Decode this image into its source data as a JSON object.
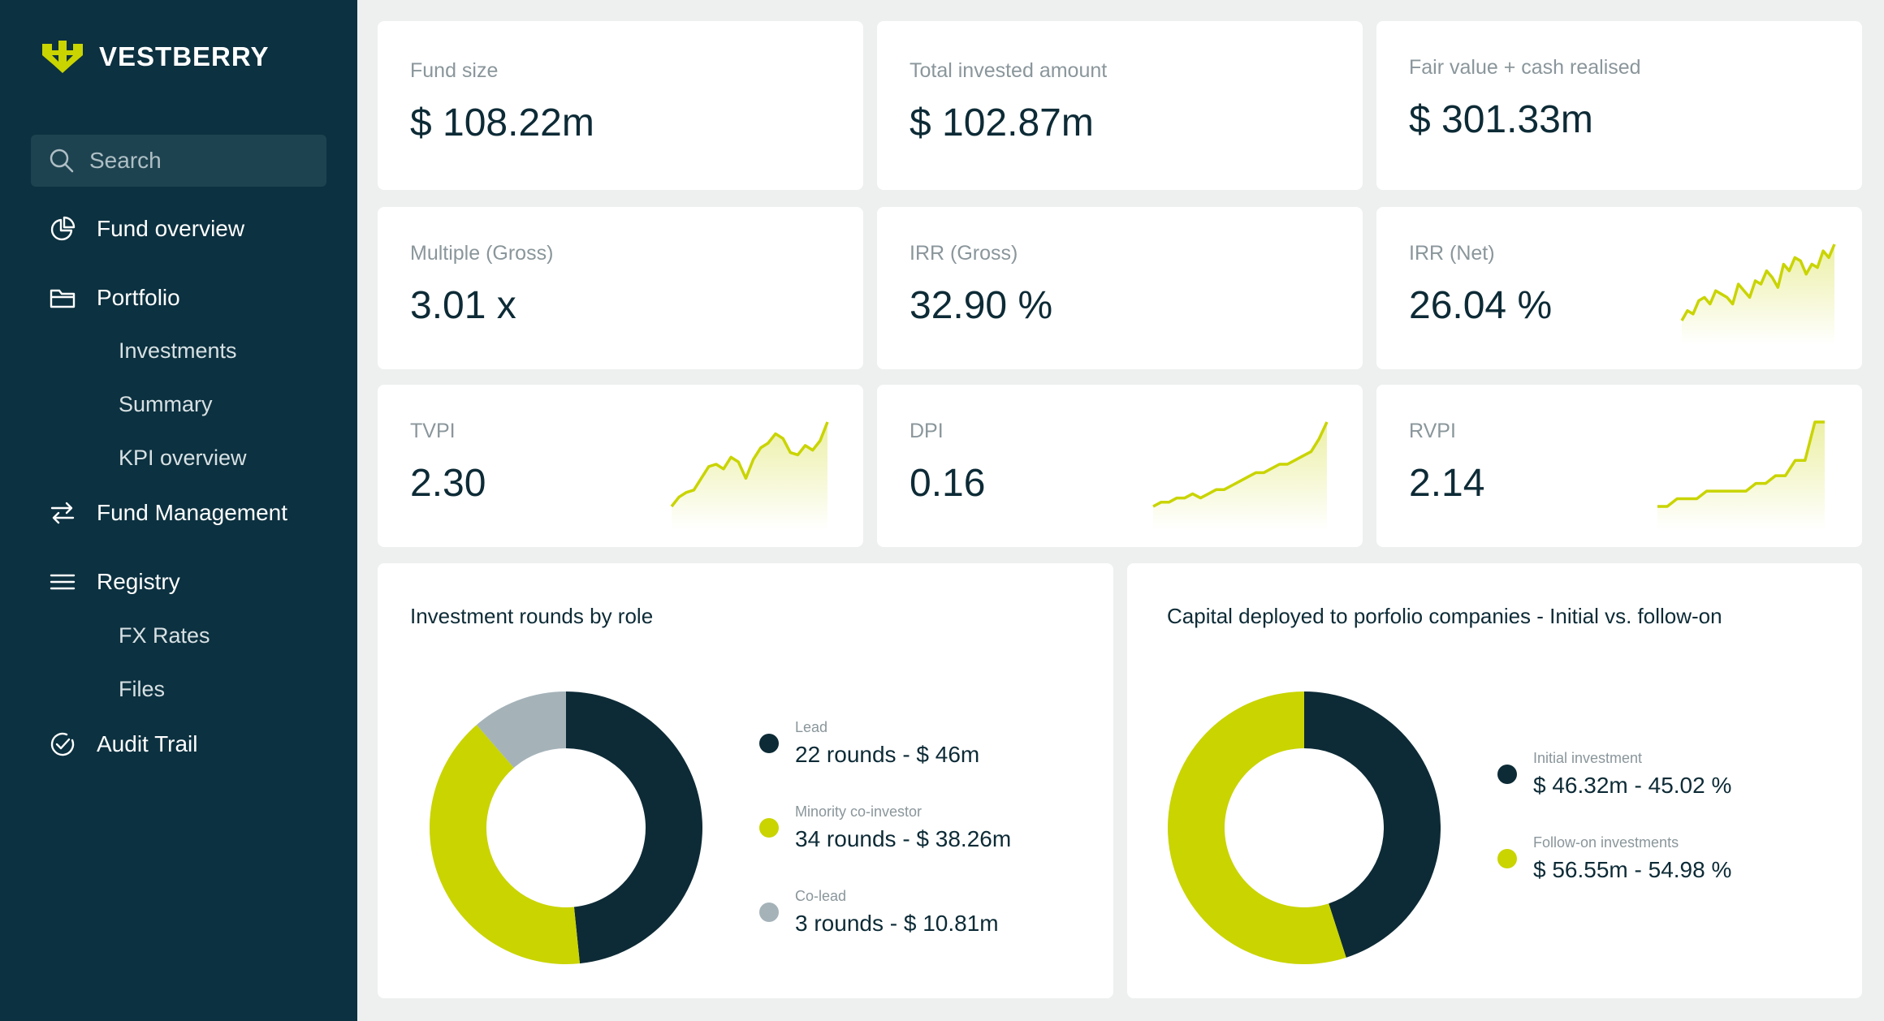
{
  "brand": {
    "name": "VESTBERRY",
    "accent": "#c9d400",
    "sidebar_bg": "#0c3140"
  },
  "search": {
    "placeholder": "Search",
    "icon": "search-icon"
  },
  "nav": {
    "fund_overview": "Fund overview",
    "portfolio": "Portfolio",
    "investments": "Investments",
    "summary": "Summary",
    "kpi_overview": "KPI overview",
    "fund_management": "Fund Management",
    "registry": "Registry",
    "fx_rates": "FX Rates",
    "files": "Files",
    "audit_trail": "Audit Trail"
  },
  "kpis": {
    "fund_size": {
      "label": "Fund size",
      "value": "$ 108.22m"
    },
    "total_invested": {
      "label": "Total invested amount",
      "value": "$ 102.87m"
    },
    "fair_value": {
      "label": "Fair value + cash realised",
      "value": "$ 301.33m"
    },
    "multiple": {
      "label": "Multiple (Gross)",
      "value": "3.01 x"
    },
    "irr_gross": {
      "label": "IRR (Gross)",
      "value": "32.90 %"
    },
    "irr_net": {
      "label": "IRR (Net)",
      "value": "26.04 %"
    },
    "tvpi": {
      "label": "TVPI",
      "value": "2.30"
    },
    "dpi": {
      "label": "DPI",
      "value": "0.16"
    },
    "rvpi": {
      "label": "RVPI",
      "value": "2.14"
    }
  },
  "chart_data": [
    {
      "type": "line",
      "series": [
        {
          "values": [
            5,
            8,
            7,
            11,
            12,
            10,
            14,
            13,
            12,
            10,
            16,
            14,
            12,
            17,
            16,
            20,
            18,
            15,
            22,
            20,
            24,
            23,
            19,
            22,
            21,
            26,
            24,
            28
          ]
        }
      ]
    },
    {
      "type": "line",
      "series": [
        {
          "values": [
            2,
            6,
            8,
            9,
            14,
            19,
            20,
            18,
            23,
            21,
            14,
            22,
            27,
            29,
            33,
            31,
            25,
            24,
            28,
            26,
            30,
            38
          ]
        }
      ]
    },
    {
      "type": "line",
      "series": [
        {
          "values": [
            2,
            3,
            3,
            4,
            4,
            5,
            4,
            5,
            6,
            6,
            7,
            8,
            9,
            10,
            10,
            11,
            12,
            12,
            13,
            14,
            15,
            18,
            22
          ]
        }
      ]
    },
    {
      "type": "line",
      "series": [
        {
          "values": [
            1,
            1,
            2,
            2,
            2,
            3,
            3,
            3,
            3,
            3,
            4,
            4,
            5,
            5,
            7,
            7,
            12,
            12
          ]
        }
      ]
    },
    {
      "type": "pie",
      "title": "Investment rounds by role",
      "labels": [
        "Lead",
        "Minority co-investor",
        "Co-lead"
      ],
      "values": [
        46,
        38.26,
        10.81
      ],
      "colors": [
        "#0d2b36",
        "#c9d400",
        "#a5b3b9"
      ],
      "legend": [
        {
          "category": "Lead",
          "text": "22 rounds - $ 46m"
        },
        {
          "category": "Minority co-investor",
          "text": "34 rounds - $ 38.26m"
        },
        {
          "category": "Co-lead",
          "text": "3 rounds - $ 10.81m"
        }
      ]
    },
    {
      "type": "pie",
      "title": "Capital deployed to porfolio companies - Initial vs. follow-on",
      "labels": [
        "Initial investment",
        "Follow-on investments"
      ],
      "values": [
        45.02,
        54.98
      ],
      "colors": [
        "#0d2b36",
        "#c9d400"
      ],
      "legend": [
        {
          "category": "Initial investment",
          "text": "$ 46.32m - 45.02 %"
        },
        {
          "category": "Follow-on investments",
          "text": "$ 56.55m - 54.98 %"
        }
      ]
    }
  ]
}
